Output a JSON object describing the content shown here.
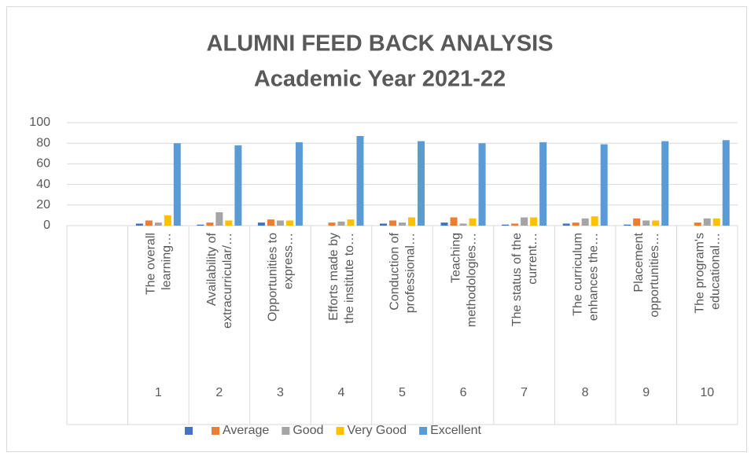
{
  "chart_data": {
    "type": "bar",
    "title": [
      "ALUMNI FEED BACK ANALYSIS",
      "Academic Year 2021-22"
    ],
    "categories": [
      null,
      [
        "The overall",
        "learning…"
      ],
      [
        "Availability of",
        "extracurricular/…"
      ],
      [
        "Opportunities to",
        "express…"
      ],
      [
        "Efforts made by",
        "the institute to…"
      ],
      [
        "Conduction of",
        "professional…"
      ],
      [
        "Teaching",
        "methodologies…"
      ],
      [
        "The status of the",
        "current…"
      ],
      [
        "The curriculum",
        "enhances the…"
      ],
      [
        "Placement",
        "opportunities…"
      ],
      [
        "The program's",
        "educational…"
      ]
    ],
    "groups": [
      null,
      "1",
      "2",
      "3",
      "4",
      "5",
      "6",
      "7",
      "8",
      "9",
      "10"
    ],
    "series": [
      {
        "name": null,
        "color": "#4472c4",
        "values": [
          null,
          2,
          1,
          3,
          0,
          2,
          3,
          1,
          2,
          1,
          0
        ]
      },
      {
        "name": "Average",
        "color": "#ed7d31",
        "values": [
          null,
          5,
          3,
          6,
          3,
          5,
          8,
          2,
          3,
          7,
          3
        ]
      },
      {
        "name": "Good",
        "color": "#a5a5a5",
        "values": [
          null,
          3,
          13,
          5,
          4,
          3,
          2,
          8,
          7,
          5,
          7
        ]
      },
      {
        "name": "Very Good",
        "color": "#ffc000",
        "values": [
          null,
          10,
          5,
          5,
          6,
          8,
          7,
          8,
          9,
          5,
          7
        ]
      },
      {
        "name": "Excellent",
        "color": "#5b9bd5",
        "values": [
          null,
          80,
          78,
          81,
          87,
          82,
          80,
          81,
          79,
          82,
          83
        ]
      }
    ],
    "ylim": [
      0,
      100
    ],
    "yticks": [
      0,
      20,
      40,
      60,
      80,
      100
    ],
    "grid": true,
    "legend": "bottom"
  }
}
